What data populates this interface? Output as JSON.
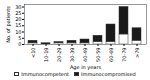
{
  "chart_data": {
    "type": "bar",
    "stacked": true,
    "categories": [
      "<10",
      "10-19",
      "20-29",
      "30-39",
      "40-49",
      "50-59",
      "60-69",
      "70-79",
      ">79"
    ],
    "series": [
      {
        "name": "Immunocompetent",
        "color": "#ffffff",
        "values": [
          1,
          0,
          1,
          1,
          1,
          2,
          2,
          8,
          3
        ]
      },
      {
        "name": "Immunocompromised",
        "color": "#1a1a1a",
        "values": [
          2,
          1,
          1,
          2,
          3,
          5,
          14,
          22,
          10
        ]
      }
    ],
    "xlabel": "Age in years",
    "ylabel": "No. of patients",
    "ylim": [
      0,
      32
    ],
    "yticks": [
      0,
      5,
      10,
      15,
      20,
      25,
      30
    ],
    "legend": "lower center"
  }
}
